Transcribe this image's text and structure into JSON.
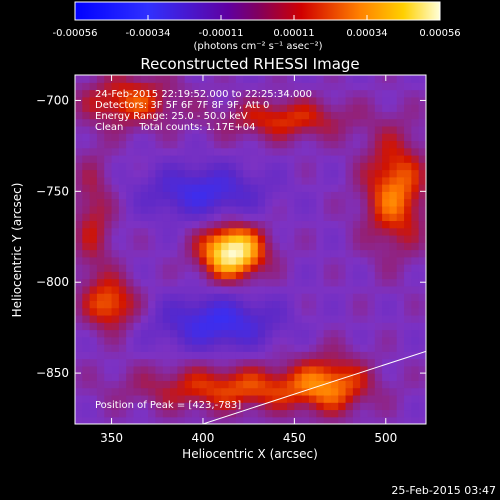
{
  "chart_data": {
    "type": "heatmap",
    "title": "Reconstructed RHESSI Image",
    "xlabel": "Heliocentric X (arcsec)",
    "ylabel": "Heliocentric Y (arcsec)",
    "xlim": [
      330,
      522
    ],
    "ylim": [
      -878,
      -686
    ],
    "xticks": [
      350,
      400,
      450,
      500
    ],
    "yticks": [
      -700,
      -750,
      -800,
      -850
    ],
    "colorbar": {
      "label": "(photons cm⁻² s⁻¹ asec⁻²)",
      "range": [
        -0.00056,
        0.00056
      ],
      "ticks": [
        "-0.00056",
        "-0.00034",
        "-0.00011",
        "0.00011",
        "0.00034",
        "0.00056"
      ]
    },
    "annotations": [
      "24-Feb-2015 22:19:52.000 to 22:25:34.000",
      "Detectors: 3F 5F 6F 7F 8F 9F, Att 0",
      "Energy Range: 25.0 - 50.0 keV",
      "Clean     Total counts: 1.17E+04"
    ],
    "peak_text": "Position of Peak = [423,-783]",
    "peak": [
      423,
      -783
    ],
    "footer_date": "25-Feb-2015 03:47",
    "sources": [
      {
        "x": 416,
        "y": -783,
        "sx": 12,
        "sy": 10,
        "amp": 1.0
      },
      {
        "x": 400,
        "y": -750,
        "sx": 22,
        "sy": 10,
        "amp": -0.45
      },
      {
        "x": 408,
        "y": -822,
        "sx": 22,
        "sy": 10,
        "amp": -0.5
      },
      {
        "x": 505,
        "y": -750,
        "sx": 12,
        "sy": 22,
        "amp": 0.55
      },
      {
        "x": 350,
        "y": -812,
        "sx": 10,
        "sy": 10,
        "amp": 0.5
      },
      {
        "x": 360,
        "y": -700,
        "sx": 18,
        "sy": 10,
        "amp": 0.45
      },
      {
        "x": 445,
        "y": -710,
        "sx": 25,
        "sy": 8,
        "amp": 0.4
      },
      {
        "x": 420,
        "y": -858,
        "sx": 40,
        "sy": 9,
        "amp": 0.45
      },
      {
        "x": 470,
        "y": -855,
        "sx": 14,
        "sy": 12,
        "amp": 0.4
      },
      {
        "x": 340,
        "y": -765,
        "sx": 8,
        "sy": 25,
        "amp": 0.3
      }
    ],
    "limb_line": {
      "x": [
        400,
        470,
        522
      ],
      "y": [
        -878,
        -855,
        -838
      ]
    }
  }
}
